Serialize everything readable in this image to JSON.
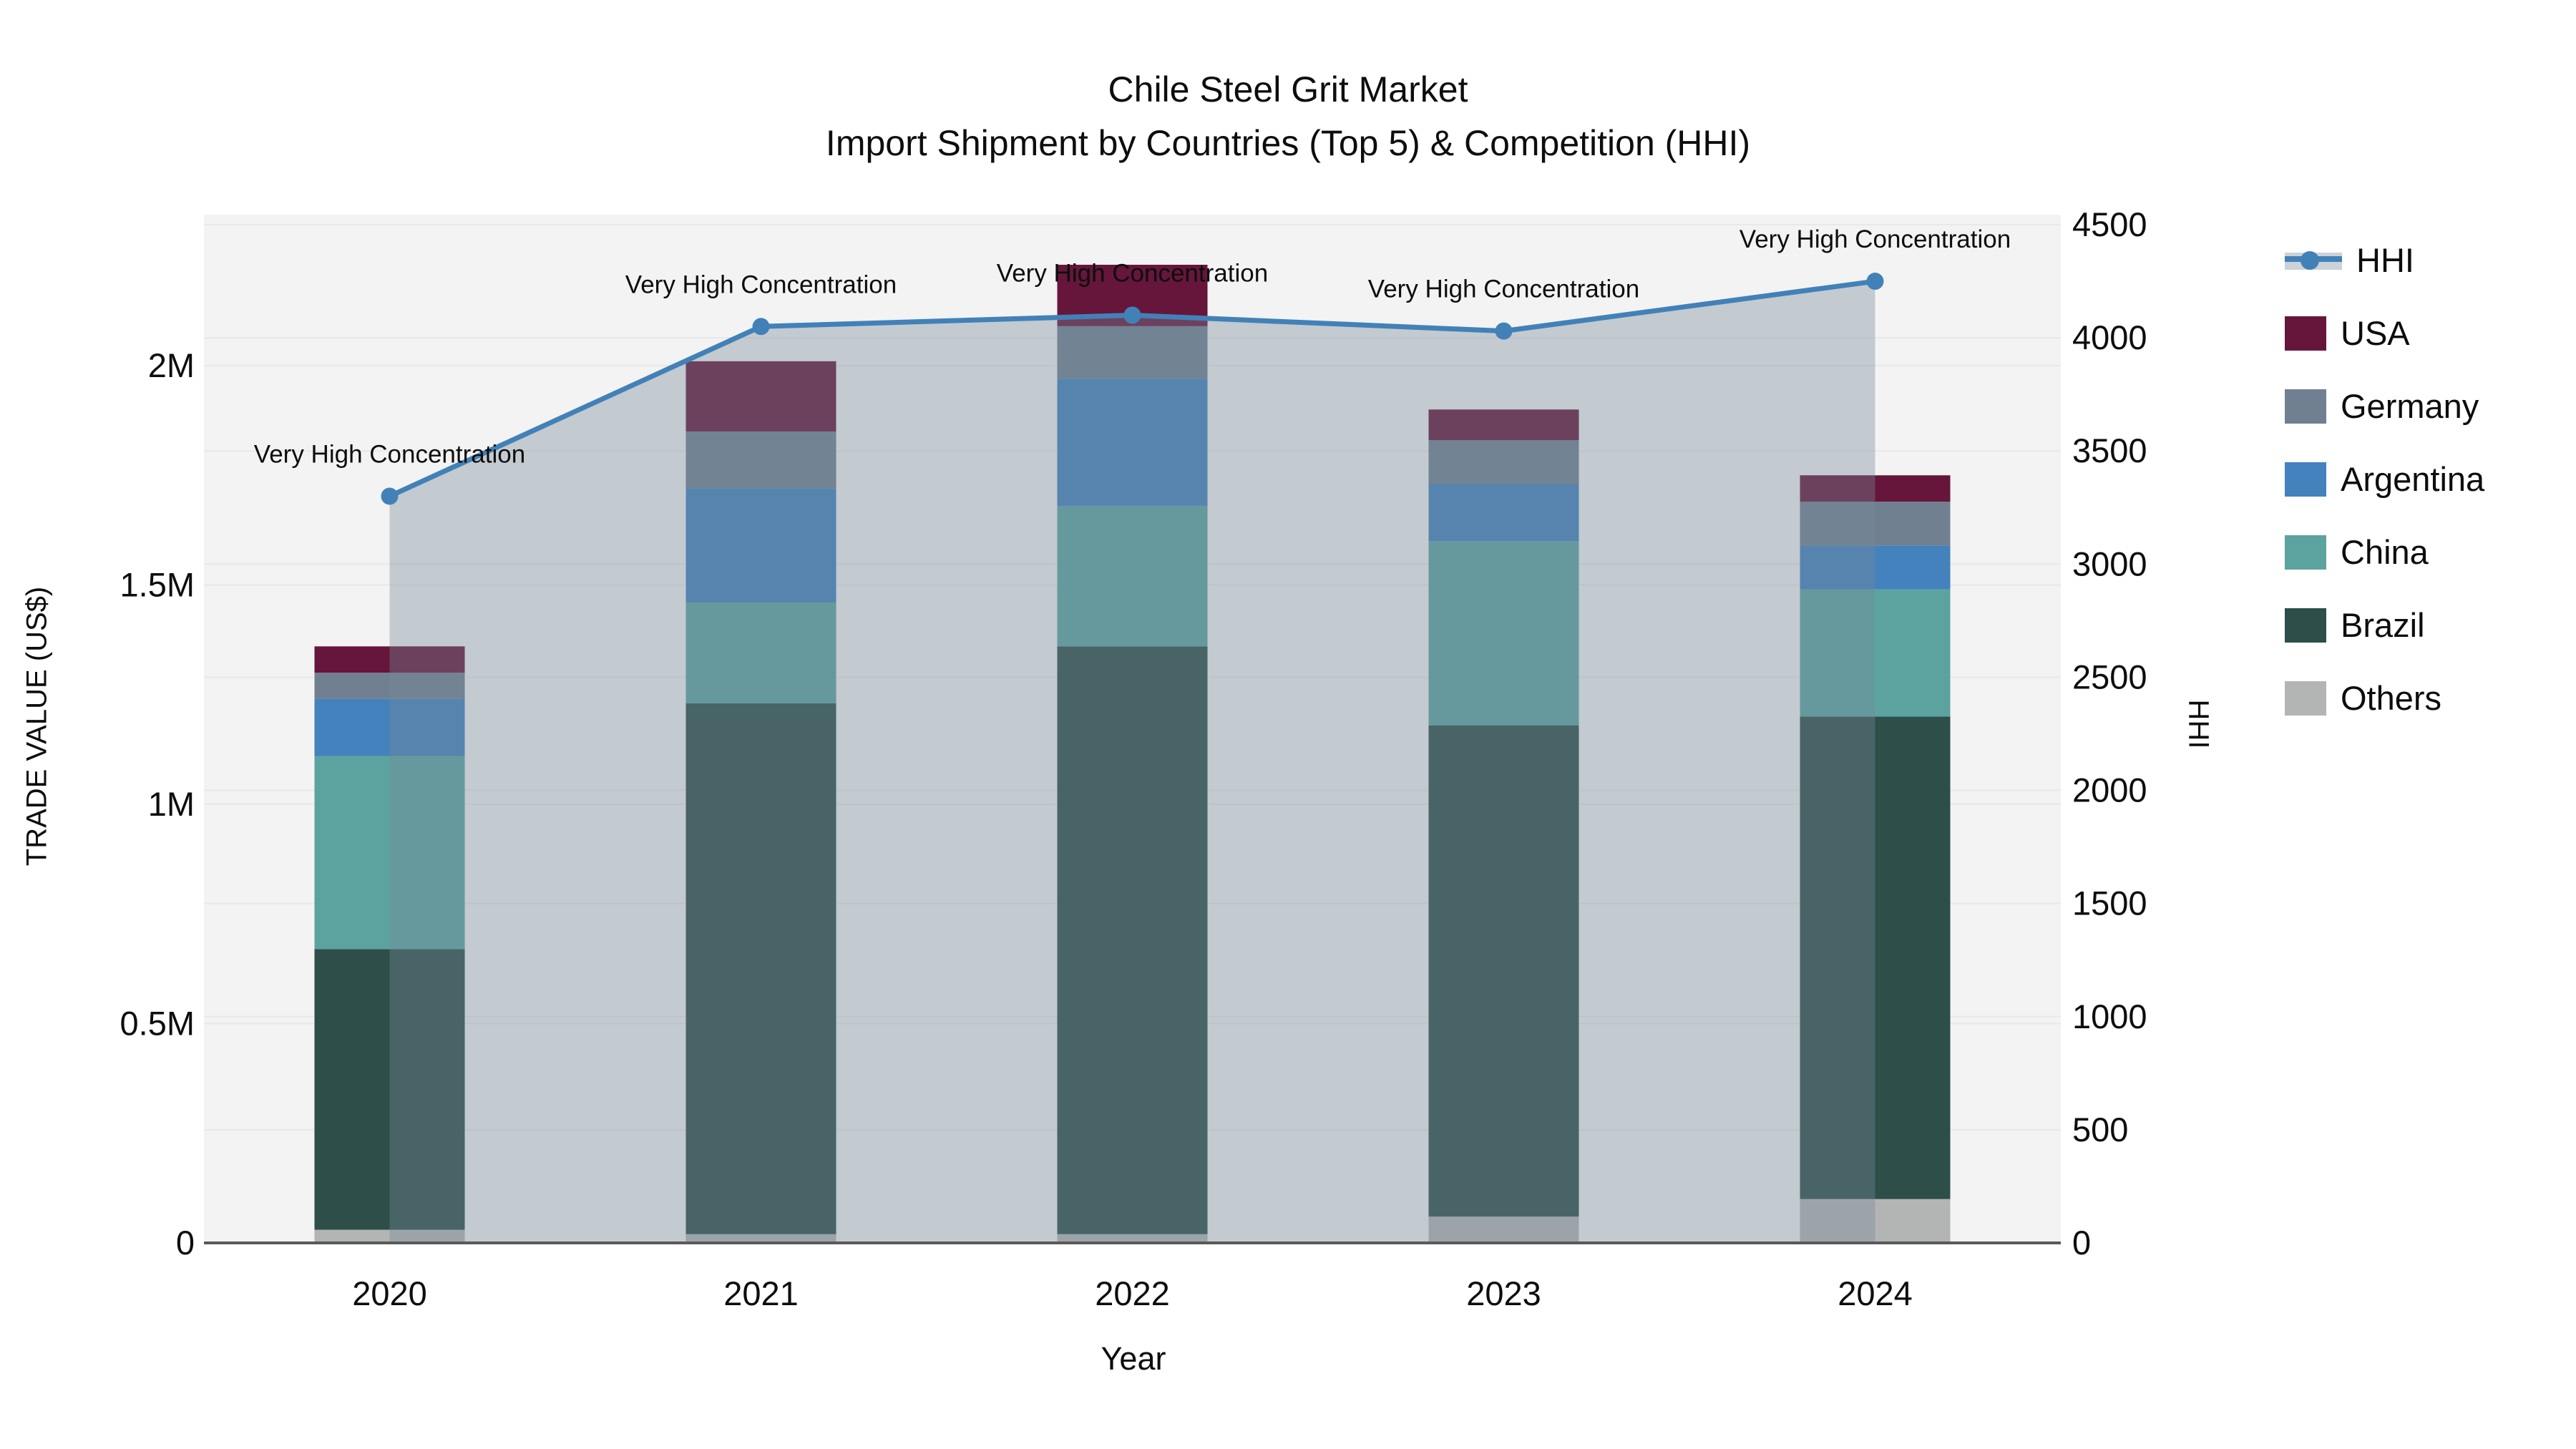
{
  "title": {
    "line1": "Chile Steel Grit Market",
    "line2": "Import Shipment by Countries (Top 5) & Competition (HHI)"
  },
  "axes": {
    "x": {
      "title": "Year"
    },
    "y_left": {
      "title": "TRADE VALUE (US$)",
      "ticks": [
        {
          "label": "0",
          "value": 0
        },
        {
          "label": "0.5M",
          "value": 500000
        },
        {
          "label": "1M",
          "value": 1000000
        },
        {
          "label": "1.5M",
          "value": 1500000
        },
        {
          "label": "2M",
          "value": 2000000
        }
      ]
    },
    "y_right": {
      "title": "HHI",
      "tick_values": [
        0,
        500,
        1000,
        1500,
        2000,
        2500,
        3000,
        3500,
        4000,
        4500
      ]
    }
  },
  "legend": {
    "items": [
      {
        "label": "HHI",
        "type": "line"
      },
      {
        "label": "USA",
        "type": "bar"
      },
      {
        "label": "Germany",
        "type": "bar"
      },
      {
        "label": "Argentina",
        "type": "bar"
      },
      {
        "label": "China",
        "type": "bar"
      },
      {
        "label": "Brazil",
        "type": "bar"
      },
      {
        "label": "Others",
        "type": "bar"
      }
    ]
  },
  "chart_data": {
    "type": "bar+line",
    "subtype": "stacked-bars-with-secondary-axis-line",
    "categories": [
      "2020",
      "2021",
      "2022",
      "2023",
      "2024"
    ],
    "bar_value_unit": "US$",
    "stack_bottom_to_top": [
      "Others",
      "Brazil",
      "China",
      "Argentina",
      "Germany",
      "USA"
    ],
    "series": [
      {
        "name": "USA",
        "type": "bar",
        "color": "#66163B",
        "values": [
          60000,
          160000,
          140000,
          70000,
          60000
        ]
      },
      {
        "name": "Germany",
        "type": "bar",
        "color": "#708090",
        "values": [
          60000,
          130000,
          120000,
          100000,
          100000
        ]
      },
      {
        "name": "Argentina",
        "type": "bar",
        "color": "#4382BC",
        "values": [
          130000,
          260000,
          290000,
          130000,
          100000
        ]
      },
      {
        "name": "China",
        "type": "bar",
        "color": "#5CA3A0",
        "values": [
          440000,
          230000,
          320000,
          420000,
          290000
        ]
      },
      {
        "name": "Brazil",
        "type": "bar",
        "color": "#2D4E49",
        "values": [
          640000,
          1210000,
          1340000,
          1120000,
          1100000
        ]
      },
      {
        "name": "Others",
        "type": "bar",
        "color": "#B3B5B4",
        "values": [
          30000,
          20000,
          20000,
          60000,
          100000
        ]
      }
    ],
    "line_series": {
      "name": "HHI",
      "axis": "right",
      "color": "#4281B8",
      "area_fill": "rgba(119,136,153,0.38)",
      "legend_band_color": "#CBD2D8",
      "values": [
        3300,
        4050,
        4100,
        4030,
        4250
      ]
    },
    "annotations": [
      {
        "text": "Very High Concentration",
        "category": "2020",
        "hhi": 3300
      },
      {
        "text": "Very High Concentration",
        "category": "2021",
        "hhi": 4050
      },
      {
        "text": "Very High Concentration",
        "category": "2022",
        "hhi": 4100
      },
      {
        "text": "Very High Concentration",
        "category": "2023",
        "hhi": 4030
      },
      {
        "text": "Very High Concentration",
        "category": "2024",
        "hhi": 4250
      }
    ],
    "y_left_range": [
      0,
      2356000
    ],
    "y_right_range": [
      0,
      4553
    ],
    "grid": true,
    "legend_position": "right"
  },
  "colors": {
    "plot_background": "#F2F3F2",
    "gridline": "#E7E9E9",
    "axis_line": "#5A5A5A",
    "text": "#0D0D0D"
  }
}
